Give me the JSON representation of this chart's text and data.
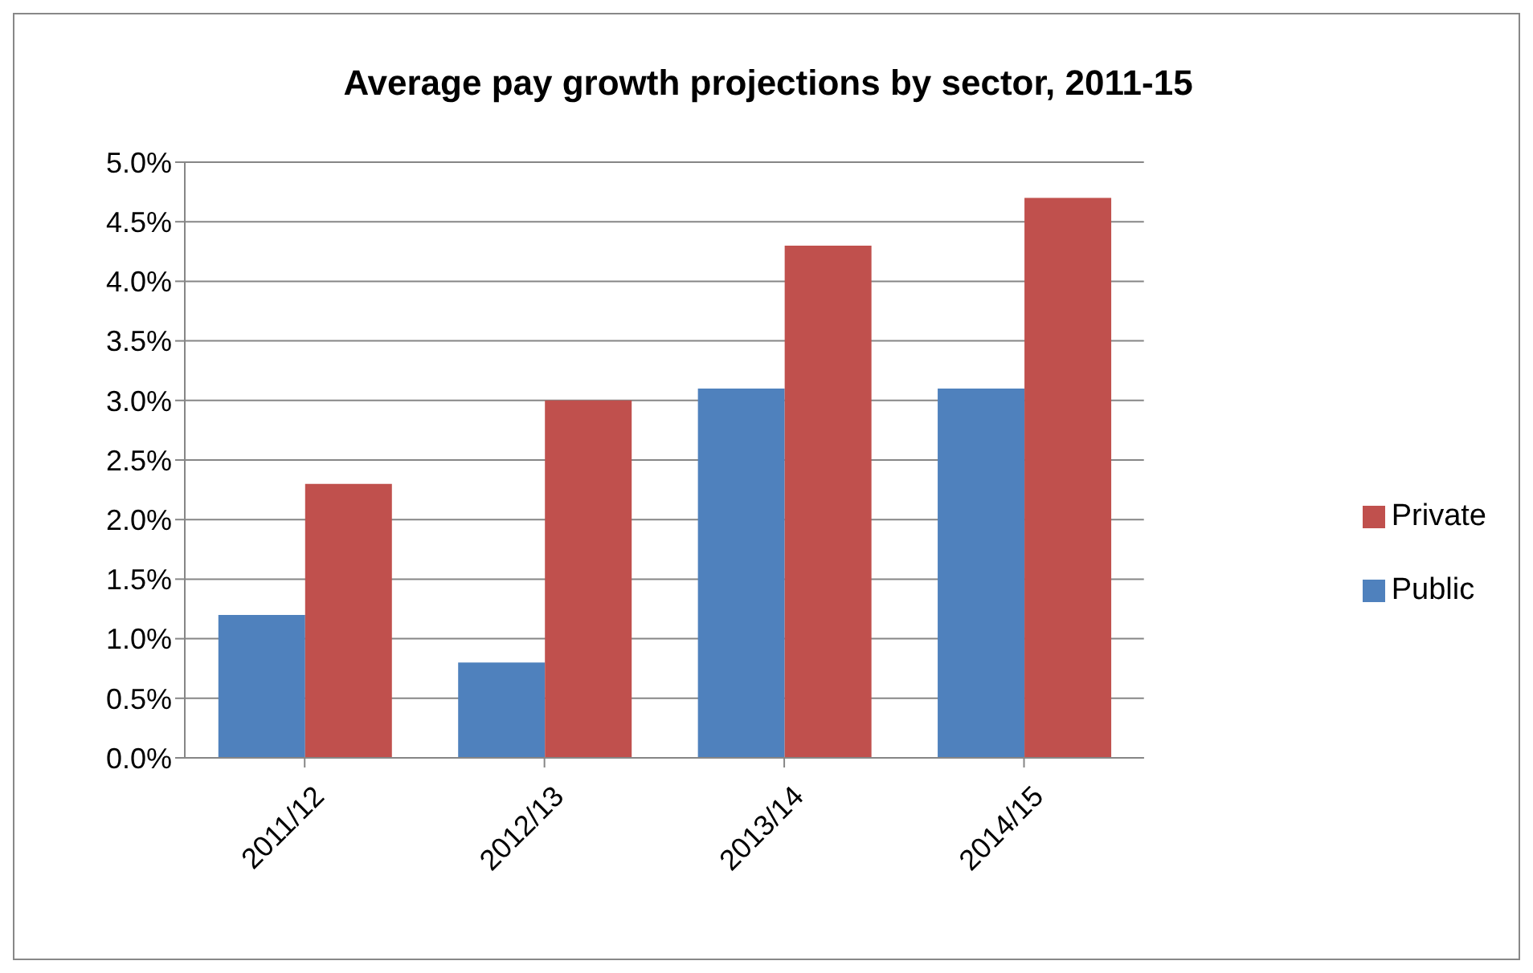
{
  "chart_data": {
    "type": "bar",
    "title": "Average pay growth projections by sector, 2011-15",
    "categories": [
      "2011/12",
      "2012/13",
      "2013/14",
      "2014/15"
    ],
    "series": [
      {
        "name": "Public",
        "color": "#4f81bd",
        "values": [
          1.2,
          0.8,
          3.1,
          3.1
        ]
      },
      {
        "name": "Private",
        "color": "#c0504d",
        "values": [
          2.3,
          3.0,
          4.3,
          4.7
        ]
      }
    ],
    "ylim": [
      0,
      5
    ],
    "yticks": [
      {
        "value": 0,
        "label": "0.0%"
      },
      {
        "value": 0.5,
        "label": "0.5%"
      },
      {
        "value": 1,
        "label": "1.0%"
      },
      {
        "value": 1.5,
        "label": "1.5%"
      },
      {
        "value": 2,
        "label": "2.0%"
      },
      {
        "value": 2.5,
        "label": "2.5%"
      },
      {
        "value": 3,
        "label": "3.0%"
      },
      {
        "value": 3.5,
        "label": "3.5%"
      },
      {
        "value": 4,
        "label": "4.0%"
      },
      {
        "value": 4.5,
        "label": "4.5%"
      },
      {
        "value": 5,
        "label": "5.0%"
      }
    ],
    "grid": "y",
    "legend": "right"
  }
}
